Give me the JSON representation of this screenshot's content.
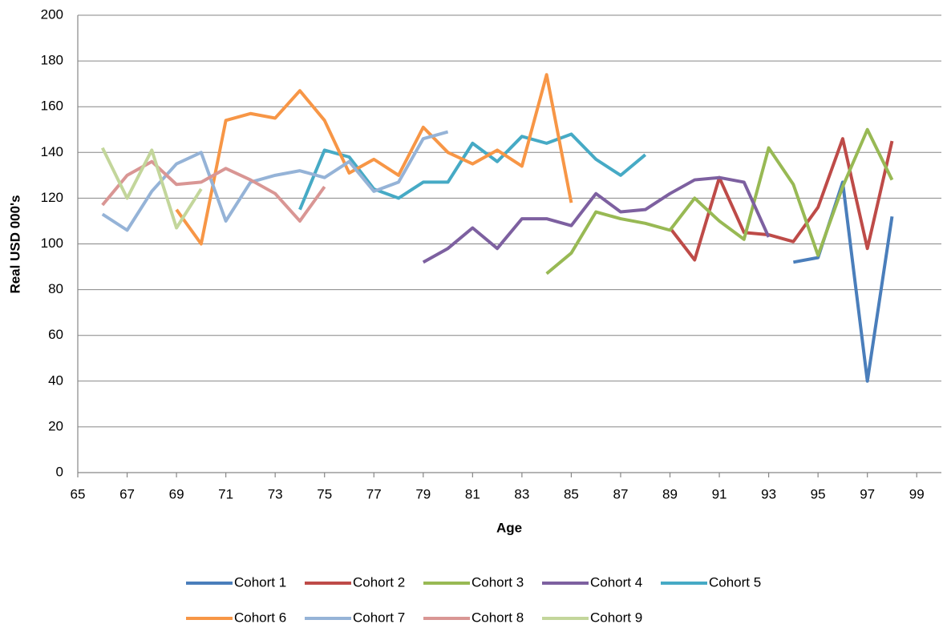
{
  "chart_data": {
    "type": "line",
    "x_label": "Age",
    "y_label": "Real USD 000's",
    "x": [
      66,
      67,
      68,
      69,
      70,
      71,
      72,
      73,
      74,
      75,
      76,
      77,
      78,
      79,
      80,
      81,
      82,
      83,
      84,
      85,
      86,
      87,
      88,
      89,
      90,
      91,
      92,
      93,
      94,
      95,
      96,
      97,
      98
    ],
    "series": [
      {
        "name": "Cohort 1",
        "color": "#4a7ebb",
        "values": [
          null,
          null,
          null,
          null,
          null,
          null,
          null,
          null,
          null,
          null,
          null,
          null,
          null,
          null,
          null,
          null,
          null,
          null,
          null,
          null,
          null,
          null,
          null,
          null,
          null,
          null,
          null,
          null,
          92,
          94,
          127,
          40,
          112
        ]
      },
      {
        "name": "Cohort 2",
        "color": "#be4b48",
        "values": [
          null,
          null,
          null,
          null,
          null,
          null,
          null,
          null,
          null,
          null,
          null,
          null,
          null,
          null,
          null,
          null,
          null,
          null,
          null,
          null,
          null,
          null,
          null,
          107,
          93,
          129,
          105,
          104,
          101,
          116,
          146,
          98,
          145
        ]
      },
      {
        "name": "Cohort 3",
        "color": "#98b954",
        "values": [
          null,
          null,
          null,
          null,
          null,
          null,
          null,
          null,
          null,
          null,
          null,
          null,
          null,
          null,
          null,
          null,
          null,
          null,
          87,
          96,
          114,
          111,
          109,
          106,
          120,
          110,
          102,
          142,
          126,
          95,
          125,
          150,
          128
        ]
      },
      {
        "name": "Cohort 4",
        "color": "#7d60a0",
        "values": [
          null,
          null,
          null,
          null,
          null,
          null,
          null,
          null,
          null,
          null,
          null,
          null,
          null,
          92,
          98,
          107,
          98,
          111,
          111,
          108,
          122,
          114,
          115,
          122,
          128,
          129,
          127,
          103,
          null,
          null,
          null,
          null,
          null
        ]
      },
      {
        "name": "Cohort 5",
        "color": "#46aac5",
        "values": [
          null,
          null,
          null,
          null,
          null,
          null,
          null,
          null,
          115,
          141,
          138,
          124,
          120,
          127,
          127,
          144,
          136,
          147,
          144,
          148,
          137,
          130,
          139,
          null,
          null,
          null,
          null,
          null,
          null,
          null,
          null,
          null,
          null
        ]
      },
      {
        "name": "Cohort 6",
        "color": "#f79646",
        "values": [
          null,
          null,
          null,
          115,
          100,
          154,
          157,
          155,
          167,
          154,
          131,
          137,
          130,
          151,
          140,
          135,
          141,
          134,
          174,
          118,
          null,
          null,
          null,
          null,
          null,
          null,
          null,
          null,
          null,
          null,
          null,
          null,
          null
        ]
      },
      {
        "name": "Cohort 7",
        "color": "#95b3d7",
        "values": [
          113,
          106,
          123,
          135,
          140,
          110,
          127,
          130,
          132,
          129,
          136,
          123,
          127,
          146,
          149,
          null,
          null,
          null,
          null,
          null,
          null,
          null,
          null,
          null,
          null,
          null,
          null,
          null,
          null,
          null,
          null,
          null,
          null
        ]
      },
      {
        "name": "Cohort 8",
        "color": "#d99694",
        "values": [
          117,
          130,
          136,
          126,
          127,
          133,
          128,
          122,
          110,
          125,
          null,
          null,
          null,
          null,
          null,
          null,
          null,
          null,
          null,
          null,
          null,
          null,
          null,
          null,
          null,
          null,
          null,
          null,
          null,
          null,
          null,
          null,
          null
        ]
      },
      {
        "name": "Cohort 9",
        "color": "#c3d69b",
        "values": [
          142,
          120,
          141,
          107,
          124,
          null,
          null,
          null,
          null,
          null,
          null,
          null,
          null,
          null,
          null,
          null,
          null,
          null,
          null,
          null,
          null,
          null,
          null,
          null,
          null,
          null,
          null,
          null,
          null,
          null,
          null,
          null,
          null
        ]
      }
    ],
    "xlim": [
      65,
      100
    ],
    "xticks": [
      65,
      67,
      69,
      71,
      73,
      75,
      77,
      79,
      81,
      83,
      85,
      87,
      89,
      91,
      93,
      95,
      97,
      99
    ],
    "ylim": [
      0,
      200
    ],
    "yticks": [
      0,
      20,
      40,
      60,
      80,
      100,
      120,
      140,
      160,
      180,
      200
    ],
    "grid": true,
    "legend": "bottom"
  }
}
